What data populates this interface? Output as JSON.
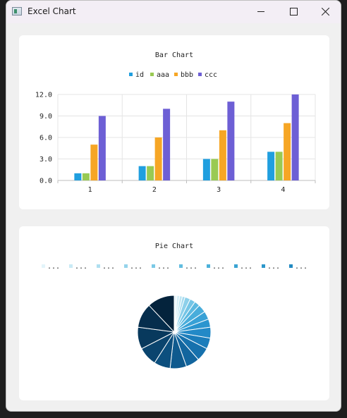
{
  "window": {
    "title": "Excel Chart",
    "icon": "table-app-icon"
  },
  "chart_data": [
    {
      "type": "bar",
      "title": "Bar Chart",
      "categories": [
        "1",
        "2",
        "3",
        "4"
      ],
      "series": [
        {
          "name": "id",
          "values": [
            1,
            2,
            3,
            4
          ],
          "color": "#209fdf"
        },
        {
          "name": "aaa",
          "values": [
            1,
            2,
            3,
            4
          ],
          "color": "#99ca53"
        },
        {
          "name": "bbb",
          "values": [
            5,
            6,
            7,
            8
          ],
          "color": "#f6a625"
        },
        {
          "name": "ccc",
          "values": [
            9,
            10,
            11,
            12
          ],
          "color": "#6d5fd5"
        }
      ],
      "ylim": [
        0,
        12
      ],
      "yticks": [
        "0.0",
        "3.0",
        "6.0",
        "9.0",
        "12.0"
      ],
      "legend": "top",
      "grid": true
    },
    {
      "type": "pie",
      "title": "Pie Chart",
      "legend": "top",
      "legend_labels": [
        "...",
        "...",
        "...",
        "...",
        "...",
        "...",
        "...",
        "...",
        "...",
        "..."
      ],
      "values": [
        1,
        1,
        1,
        1,
        2,
        2,
        2,
        3,
        3,
        3,
        4,
        4,
        5,
        5,
        6,
        6,
        7,
        8,
        9,
        10
      ],
      "colors": [
        "#e8f6fb",
        "#d3eef7",
        "#bee6f3",
        "#a6dbef",
        "#8dd0ea",
        "#74c5e6",
        "#5cb9e0",
        "#48addb",
        "#38a1d6",
        "#2b95cf",
        "#2289c7",
        "#1b7dbb",
        "#1671ad",
        "#12659e",
        "#0f5a8e",
        "#0c4f7e",
        "#0a446e",
        "#08395d",
        "#062e4d",
        "#04233c"
      ],
      "legend_colors": [
        "#e3f4fa",
        "#c9eaf5",
        "#afdff0",
        "#95d4eb",
        "#7bc9e6",
        "#62bde0",
        "#4cb1da",
        "#3aa4d3",
        "#2c97cb",
        "#228ac2"
      ]
    }
  ]
}
